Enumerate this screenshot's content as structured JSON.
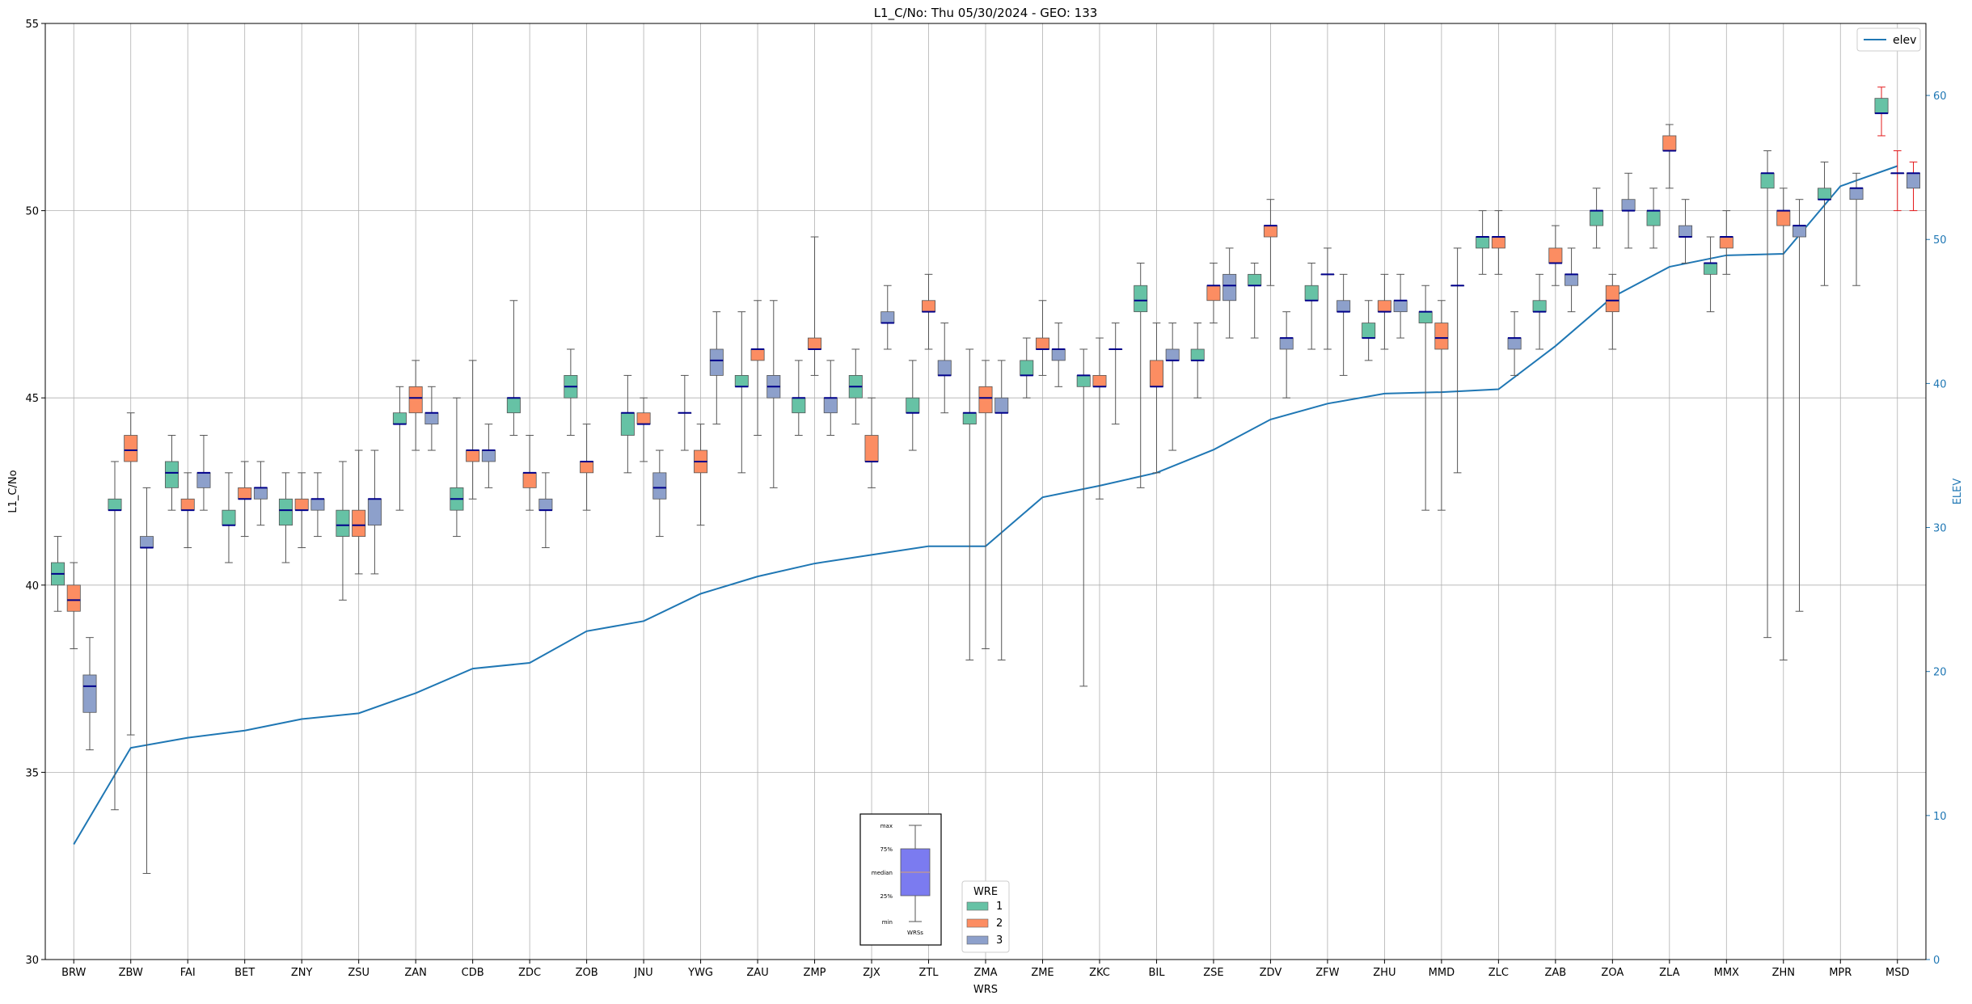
{
  "chart_data": {
    "type": "box",
    "title": "L1_C/No: Thu 05/30/2024 - GEO: 133",
    "xlabel": "WRS",
    "ylabel": "L1_C/No",
    "y2label": "ELEV",
    "ylim": [
      30,
      55
    ],
    "y2lim": [
      0,
      65
    ],
    "yticks": [
      30,
      35,
      40,
      45,
      50,
      55
    ],
    "y2ticks": [
      0,
      10,
      20,
      30,
      40,
      50,
      60
    ],
    "grid": true,
    "colors": {
      "wre1": "#66c2a5",
      "wre2": "#fc8d62",
      "wre3": "#8da0cb",
      "elev": "#1f77b4",
      "median": "#00008b",
      "whisker": "#555555",
      "msd_whisker": "#e41a1c",
      "legend_box": "#7b7bf0",
      "axis2": "#1f77b4"
    },
    "legend_wre": {
      "title": "WRE",
      "placement": "bottom-center",
      "entries": [
        "1",
        "2",
        "3"
      ]
    },
    "legend_elev": {
      "placement": "top-right",
      "label": "elev"
    },
    "box_key": {
      "labels": [
        "max",
        "75%",
        "median",
        "25%",
        "min"
      ],
      "xlabel": "WRSs"
    },
    "categories": [
      "BRW",
      "ZBW",
      "FAI",
      "BET",
      "ZNY",
      "ZSU",
      "ZAN",
      "CDB",
      "ZDC",
      "ZOB",
      "JNU",
      "YWG",
      "ZAU",
      "ZMP",
      "ZJX",
      "ZTL",
      "ZMA",
      "ZME",
      "ZKC",
      "BIL",
      "ZSE",
      "ZDV",
      "ZFW",
      "ZHU",
      "MMD",
      "ZLC",
      "ZAB",
      "ZOA",
      "ZLA",
      "MMX",
      "ZHN",
      "MPR",
      "MSD"
    ],
    "elev": [
      8,
      14.7,
      15.4,
      15.9,
      16.7,
      17.1,
      18.5,
      20.2,
      20.6,
      22.8,
      23.5,
      25.4,
      26.6,
      27.5,
      28.1,
      28.7,
      28.7,
      32.1,
      32.9,
      33.8,
      35.4,
      37.5,
      38.6,
      39.3,
      39.4,
      39.6,
      42.6,
      46,
      48.1,
      48.9,
      49,
      53.7,
      55.1
    ],
    "boxes": [
      {
        "wrs": "BRW",
        "wre": 1,
        "min": 39.3,
        "q1": 40,
        "median": 40.3,
        "q3": 40.6,
        "max": 41.3
      },
      {
        "wrs": "BRW",
        "wre": 2,
        "min": 38.3,
        "q1": 39.3,
        "median": 39.6,
        "q3": 40,
        "max": 40.6
      },
      {
        "wrs": "BRW",
        "wre": 3,
        "min": 35.6,
        "q1": 36.6,
        "median": 37.3,
        "q3": 37.6,
        "max": 38.6
      },
      {
        "wrs": "ZBW",
        "wre": 1,
        "min": 34,
        "q1": 42,
        "median": 42,
        "q3": 42.3,
        "max": 43.3
      },
      {
        "wrs": "ZBW",
        "wre": 2,
        "min": 36,
        "q1": 43.3,
        "median": 43.6,
        "q3": 44,
        "max": 44.6
      },
      {
        "wrs": "ZBW",
        "wre": 3,
        "min": 32.3,
        "q1": 41,
        "median": 41,
        "q3": 41.3,
        "max": 42.6
      },
      {
        "wrs": "FAI",
        "wre": 1,
        "min": 42,
        "q1": 42.6,
        "median": 43,
        "q3": 43.3,
        "max": 44
      },
      {
        "wrs": "FAI",
        "wre": 2,
        "min": 41,
        "q1": 42,
        "median": 42,
        "q3": 42.3,
        "max": 43
      },
      {
        "wrs": "FAI",
        "wre": 3,
        "min": 42,
        "q1": 42.6,
        "median": 43,
        "q3": 43,
        "max": 44
      },
      {
        "wrs": "BET",
        "wre": 1,
        "min": 40.6,
        "q1": 41.6,
        "median": 41.6,
        "q3": 42,
        "max": 43
      },
      {
        "wrs": "BET",
        "wre": 2,
        "min": 41.3,
        "q1": 42.3,
        "median": 42.3,
        "q3": 42.6,
        "max": 43.3
      },
      {
        "wrs": "BET",
        "wre": 3,
        "min": 41.6,
        "q1": 42.3,
        "median": 42.6,
        "q3": 42.6,
        "max": 43.3
      },
      {
        "wrs": "ZNY",
        "wre": 1,
        "min": 40.6,
        "q1": 41.6,
        "median": 42,
        "q3": 42.3,
        "max": 43
      },
      {
        "wrs": "ZNY",
        "wre": 2,
        "min": 41,
        "q1": 42,
        "median": 42,
        "q3": 42.3,
        "max": 43
      },
      {
        "wrs": "ZNY",
        "wre": 3,
        "min": 41.3,
        "q1": 42,
        "median": 42.3,
        "q3": 42.3,
        "max": 43
      },
      {
        "wrs": "ZSU",
        "wre": 1,
        "min": 39.6,
        "q1": 41.3,
        "median": 41.6,
        "q3": 42,
        "max": 43.3
      },
      {
        "wrs": "ZSU",
        "wre": 2,
        "min": 40.3,
        "q1": 41.3,
        "median": 41.6,
        "q3": 42,
        "max": 43.6
      },
      {
        "wrs": "ZSU",
        "wre": 3,
        "min": 40.3,
        "q1": 41.6,
        "median": 42.3,
        "q3": 42.3,
        "max": 43.6
      },
      {
        "wrs": "ZAN",
        "wre": 1,
        "min": 42,
        "q1": 44.3,
        "median": 44.3,
        "q3": 44.6,
        "max": 45.3
      },
      {
        "wrs": "ZAN",
        "wre": 2,
        "min": 43.6,
        "q1": 44.6,
        "median": 45,
        "q3": 45.3,
        "max": 46
      },
      {
        "wrs": "ZAN",
        "wre": 3,
        "min": 43.6,
        "q1": 44.3,
        "median": 44.6,
        "q3": 44.6,
        "max": 45.3
      },
      {
        "wrs": "CDB",
        "wre": 1,
        "min": 41.3,
        "q1": 42,
        "median": 42.3,
        "q3": 42.6,
        "max": 45
      },
      {
        "wrs": "CDB",
        "wre": 2,
        "min": 42.3,
        "q1": 43.3,
        "median": 43.6,
        "q3": 43.6,
        "max": 46
      },
      {
        "wrs": "CDB",
        "wre": 3,
        "min": 42.6,
        "q1": 43.3,
        "median": 43.6,
        "q3": 43.6,
        "max": 44.3
      },
      {
        "wrs": "ZDC",
        "wre": 1,
        "min": 44,
        "q1": 44.6,
        "median": 45,
        "q3": 45,
        "max": 47.6
      },
      {
        "wrs": "ZDC",
        "wre": 2,
        "min": 42,
        "q1": 42.6,
        "median": 43,
        "q3": 43,
        "max": 44
      },
      {
        "wrs": "ZDC",
        "wre": 3,
        "min": 41,
        "q1": 42,
        "median": 42,
        "q3": 42.3,
        "max": 43
      },
      {
        "wrs": "ZOB",
        "wre": 1,
        "min": 44,
        "q1": 45,
        "median": 45.3,
        "q3": 45.6,
        "max": 46.3
      },
      {
        "wrs": "ZOB",
        "wre": 2,
        "min": 42,
        "q1": 43,
        "median": 43.3,
        "q3": 43.3,
        "max": 44.3
      },
      {
        "wrs": "JNU",
        "wre": 1,
        "min": 43,
        "q1": 44,
        "median": 44.6,
        "q3": 44.6,
        "max": 45.6
      },
      {
        "wrs": "JNU",
        "wre": 2,
        "min": 43.3,
        "q1": 44.3,
        "median": 44.3,
        "q3": 44.6,
        "max": 45
      },
      {
        "wrs": "JNU",
        "wre": 3,
        "min": 41.3,
        "q1": 42.3,
        "median": 42.6,
        "q3": 43,
        "max": 43.6
      },
      {
        "wrs": "YWG",
        "wre": 1,
        "min": 43.6,
        "q1": 44.6,
        "median": 44.6,
        "q3": 44.6,
        "max": 45.6
      },
      {
        "wrs": "YWG",
        "wre": 2,
        "min": 41.6,
        "q1": 43,
        "median": 43.3,
        "q3": 43.6,
        "max": 44.3
      },
      {
        "wrs": "YWG",
        "wre": 3,
        "min": 44.3,
        "q1": 45.6,
        "median": 46,
        "q3": 46.3,
        "max": 47.3
      },
      {
        "wrs": "ZAU",
        "wre": 1,
        "min": 43,
        "q1": 45.3,
        "median": 45.3,
        "q3": 45.6,
        "max": 47.3
      },
      {
        "wrs": "ZAU",
        "wre": 2,
        "min": 44,
        "q1": 46,
        "median": 46.3,
        "q3": 46.3,
        "max": 47.6
      },
      {
        "wrs": "ZAU",
        "wre": 3,
        "min": 42.6,
        "q1": 45,
        "median": 45.3,
        "q3": 45.6,
        "max": 47.6
      },
      {
        "wrs": "ZMP",
        "wre": 1,
        "min": 44,
        "q1": 44.6,
        "median": 45,
        "q3": 45,
        "max": 46
      },
      {
        "wrs": "ZMP",
        "wre": 2,
        "min": 45.6,
        "q1": 46.3,
        "median": 46.3,
        "q3": 46.6,
        "max": 49.3
      },
      {
        "wrs": "ZMP",
        "wre": 3,
        "min": 44,
        "q1": 44.6,
        "median": 45,
        "q3": 45,
        "max": 46
      },
      {
        "wrs": "ZJX",
        "wre": 1,
        "min": 44.3,
        "q1": 45,
        "median": 45.3,
        "q3": 45.6,
        "max": 46.3
      },
      {
        "wrs": "ZJX",
        "wre": 2,
        "min": 42.6,
        "q1": 43.3,
        "median": 43.3,
        "q3": 44,
        "max": 45
      },
      {
        "wrs": "ZJX",
        "wre": 3,
        "min": 46.3,
        "q1": 47,
        "median": 47,
        "q3": 47.3,
        "max": 48
      },
      {
        "wrs": "ZTL",
        "wre": 1,
        "min": 43.6,
        "q1": 44.6,
        "median": 44.6,
        "q3": 45,
        "max": 46
      },
      {
        "wrs": "ZTL",
        "wre": 2,
        "min": 46.3,
        "q1": 47.3,
        "median": 47.3,
        "q3": 47.6,
        "max": 48.3
      },
      {
        "wrs": "ZTL",
        "wre": 3,
        "min": 44.6,
        "q1": 45.6,
        "median": 45.6,
        "q3": 46,
        "max": 47
      },
      {
        "wrs": "ZMA",
        "wre": 1,
        "min": 38,
        "q1": 44.3,
        "median": 44.6,
        "q3": 44.6,
        "max": 46.3
      },
      {
        "wrs": "ZMA",
        "wre": 2,
        "min": 38.3,
        "q1": 44.6,
        "median": 45,
        "q3": 45.3,
        "max": 46
      },
      {
        "wrs": "ZMA",
        "wre": 3,
        "min": 38,
        "q1": 44.6,
        "median": 44.6,
        "q3": 45,
        "max": 46
      },
      {
        "wrs": "ZME",
        "wre": 1,
        "min": 45,
        "q1": 45.6,
        "median": 45.6,
        "q3": 46,
        "max": 46.6
      },
      {
        "wrs": "ZME",
        "wre": 2,
        "min": 45.6,
        "q1": 46.3,
        "median": 46.3,
        "q3": 46.6,
        "max": 47.6
      },
      {
        "wrs": "ZME",
        "wre": 3,
        "min": 45.3,
        "q1": 46,
        "median": 46.3,
        "q3": 46.3,
        "max": 47
      },
      {
        "wrs": "ZKC",
        "wre": 1,
        "min": 37.3,
        "q1": 45.3,
        "median": 45.6,
        "q3": 45.6,
        "max": 46.3
      },
      {
        "wrs": "ZKC",
        "wre": 2,
        "min": 42.3,
        "q1": 45.3,
        "median": 45.3,
        "q3": 45.6,
        "max": 46.6
      },
      {
        "wrs": "ZKC",
        "wre": 3,
        "min": 44.3,
        "q1": 46.3,
        "median": 46.3,
        "q3": 46.3,
        "max": 47
      },
      {
        "wrs": "BIL",
        "wre": 1,
        "min": 42.6,
        "q1": 47.3,
        "median": 47.6,
        "q3": 48,
        "max": 48.6
      },
      {
        "wrs": "BIL",
        "wre": 2,
        "min": 43,
        "q1": 45.3,
        "median": 45.3,
        "q3": 46,
        "max": 47
      },
      {
        "wrs": "BIL",
        "wre": 3,
        "min": 43.6,
        "q1": 46,
        "median": 46,
        "q3": 46.3,
        "max": 47
      },
      {
        "wrs": "ZSE",
        "wre": 1,
        "min": 45,
        "q1": 46,
        "median": 46,
        "q3": 46.3,
        "max": 47
      },
      {
        "wrs": "ZSE",
        "wre": 2,
        "min": 47,
        "q1": 47.6,
        "median": 48,
        "q3": 48,
        "max": 48.6
      },
      {
        "wrs": "ZSE",
        "wre": 3,
        "min": 46.6,
        "q1": 47.6,
        "median": 48,
        "q3": 48.3,
        "max": 49
      },
      {
        "wrs": "ZDV",
        "wre": 1,
        "min": 46.6,
        "q1": 48,
        "median": 48,
        "q3": 48.3,
        "max": 48.6
      },
      {
        "wrs": "ZDV",
        "wre": 2,
        "min": 48,
        "q1": 49.3,
        "median": 49.6,
        "q3": 49.6,
        "max": 50.3
      },
      {
        "wrs": "ZDV",
        "wre": 3,
        "min": 45,
        "q1": 46.3,
        "median": 46.6,
        "q3": 46.6,
        "max": 47.3
      },
      {
        "wrs": "ZFW",
        "wre": 1,
        "min": 46.3,
        "q1": 47.6,
        "median": 47.6,
        "q3": 48,
        "max": 48.6
      },
      {
        "wrs": "ZFW",
        "wre": 2,
        "min": 46.3,
        "q1": 48.3,
        "median": 48.3,
        "q3": 48.3,
        "max": 49
      },
      {
        "wrs": "ZFW",
        "wre": 3,
        "min": 45.6,
        "q1": 47.3,
        "median": 47.3,
        "q3": 47.6,
        "max": 48.3
      },
      {
        "wrs": "ZHU",
        "wre": 1,
        "min": 46,
        "q1": 46.6,
        "median": 46.6,
        "q3": 47,
        "max": 47.6
      },
      {
        "wrs": "ZHU",
        "wre": 2,
        "min": 46.3,
        "q1": 47.3,
        "median": 47.3,
        "q3": 47.6,
        "max": 48.3
      },
      {
        "wrs": "ZHU",
        "wre": 3,
        "min": 46.6,
        "q1": 47.3,
        "median": 47.6,
        "q3": 47.6,
        "max": 48.3
      },
      {
        "wrs": "MMD",
        "wre": 1,
        "min": 42,
        "q1": 47,
        "median": 47.3,
        "q3": 47.3,
        "max": 48
      },
      {
        "wrs": "MMD",
        "wre": 2,
        "min": 42,
        "q1": 46.3,
        "median": 46.6,
        "q3": 47,
        "max": 47.6
      },
      {
        "wrs": "MMD",
        "wre": 3,
        "min": 43,
        "q1": 48,
        "median": 48,
        "q3": 48,
        "max": 49
      },
      {
        "wrs": "ZLC",
        "wre": 1,
        "min": 48.3,
        "q1": 49,
        "median": 49.3,
        "q3": 49.3,
        "max": 50
      },
      {
        "wrs": "ZLC",
        "wre": 2,
        "min": 48.3,
        "q1": 49,
        "median": 49.3,
        "q3": 49.3,
        "max": 50
      },
      {
        "wrs": "ZLC",
        "wre": 3,
        "min": 45.6,
        "q1": 46.3,
        "median": 46.6,
        "q3": 46.6,
        "max": 47.3
      },
      {
        "wrs": "ZAB",
        "wre": 1,
        "min": 46.3,
        "q1": 47.3,
        "median": 47.3,
        "q3": 47.6,
        "max": 48.3
      },
      {
        "wrs": "ZAB",
        "wre": 2,
        "min": 48,
        "q1": 48.6,
        "median": 48.6,
        "q3": 49,
        "max": 49.6
      },
      {
        "wrs": "ZAB",
        "wre": 3,
        "min": 47.3,
        "q1": 48,
        "median": 48.3,
        "q3": 48.3,
        "max": 49
      },
      {
        "wrs": "ZOA",
        "wre": 1,
        "min": 49,
        "q1": 49.6,
        "median": 50,
        "q3": 50,
        "max": 50.6
      },
      {
        "wrs": "ZOA",
        "wre": 2,
        "min": 46.3,
        "q1": 47.3,
        "median": 47.6,
        "q3": 48,
        "max": 48.3
      },
      {
        "wrs": "ZOA",
        "wre": 3,
        "min": 49,
        "q1": 50,
        "median": 50,
        "q3": 50.3,
        "max": 51
      },
      {
        "wrs": "ZLA",
        "wre": 1,
        "min": 49,
        "q1": 49.6,
        "median": 50,
        "q3": 50,
        "max": 50.6
      },
      {
        "wrs": "ZLA",
        "wre": 2,
        "min": 50.6,
        "q1": 51.6,
        "median": 51.6,
        "q3": 52,
        "max": 52.3
      },
      {
        "wrs": "ZLA",
        "wre": 3,
        "min": 48.6,
        "q1": 49.3,
        "median": 49.3,
        "q3": 49.6,
        "max": 50.3
      },
      {
        "wrs": "MMX",
        "wre": 1,
        "min": 47.3,
        "q1": 48.3,
        "median": 48.6,
        "q3": 48.6,
        "max": 49.3
      },
      {
        "wrs": "MMX",
        "wre": 2,
        "min": 48.3,
        "q1": 49,
        "median": 49.3,
        "q3": 49.3,
        "max": 50
      },
      {
        "wrs": "ZHN",
        "wre": 1,
        "min": 38.6,
        "q1": 50.6,
        "median": 51,
        "q3": 51,
        "max": 51.6
      },
      {
        "wrs": "ZHN",
        "wre": 2,
        "min": 38,
        "q1": 49.6,
        "median": 50,
        "q3": 50,
        "max": 50.6
      },
      {
        "wrs": "ZHN",
        "wre": 3,
        "min": 39.3,
        "q1": 49.3,
        "median": 49.6,
        "q3": 49.6,
        "max": 50.3
      },
      {
        "wrs": "MPR",
        "wre": 1,
        "min": 48,
        "q1": 50.3,
        "median": 50.3,
        "q3": 50.6,
        "max": 51.3
      },
      {
        "wrs": "MPR",
        "wre": 3,
        "min": 48,
        "q1": 50.3,
        "median": 50.6,
        "q3": 50.6,
        "max": 51
      },
      {
        "wrs": "MSD",
        "wre": 1,
        "min": 52,
        "q1": 52.6,
        "median": 52.6,
        "q3": 53,
        "max": 53.3
      },
      {
        "wrs": "MSD",
        "wre": 2,
        "min": 50,
        "q1": 51,
        "median": 51,
        "q3": 51,
        "max": 51.6
      },
      {
        "wrs": "MSD",
        "wre": 3,
        "min": 50,
        "q1": 50.6,
        "median": 51,
        "q3": 51,
        "max": 51.3
      }
    ]
  }
}
